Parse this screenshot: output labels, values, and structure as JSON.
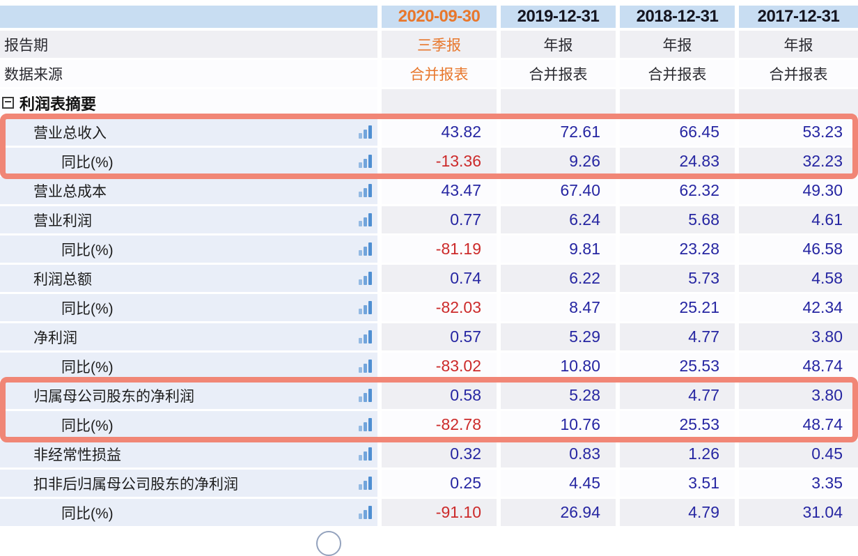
{
  "header": {
    "columns": [
      "2020-09-30",
      "2019-12-31",
      "2018-12-31",
      "2017-12-31"
    ],
    "accent_column": "2020-09-30"
  },
  "meta_rows": [
    {
      "label": "报告期",
      "values": [
        "三季报",
        "年报",
        "年报",
        "年报"
      ]
    },
    {
      "label": "数据来源",
      "values": [
        "合并报表",
        "合并报表",
        "合并报表",
        "合并报表"
      ]
    }
  ],
  "section": {
    "title": "利润表摘要",
    "collapse_icon": "minus-box-icon"
  },
  "rows": [
    {
      "label": "营业总收入",
      "indent": 1,
      "values": [
        "43.82",
        "72.61",
        "66.45",
        "53.23"
      ]
    },
    {
      "label": "同比(%)",
      "indent": 2,
      "values": [
        "-13.36",
        "9.26",
        "24.83",
        "32.23"
      ]
    },
    {
      "label": "营业总成本",
      "indent": 1,
      "values": [
        "43.47",
        "67.40",
        "62.32",
        "49.30"
      ]
    },
    {
      "label": "营业利润",
      "indent": 1,
      "values": [
        "0.77",
        "6.24",
        "5.68",
        "4.61"
      ]
    },
    {
      "label": "同比(%)",
      "indent": 2,
      "values": [
        "-81.19",
        "9.81",
        "23.28",
        "46.58"
      ]
    },
    {
      "label": "利润总额",
      "indent": 1,
      "values": [
        "0.74",
        "6.22",
        "5.73",
        "4.58"
      ]
    },
    {
      "label": "同比(%)",
      "indent": 2,
      "values": [
        "-82.03",
        "8.47",
        "25.21",
        "42.34"
      ]
    },
    {
      "label": "净利润",
      "indent": 1,
      "values": [
        "0.57",
        "5.29",
        "4.77",
        "3.80"
      ]
    },
    {
      "label": "同比(%)",
      "indent": 2,
      "values": [
        "-83.02",
        "10.80",
        "25.53",
        "48.74"
      ]
    },
    {
      "label": "归属母公司股东的净利润",
      "indent": 1,
      "values": [
        "0.58",
        "5.28",
        "4.77",
        "3.80"
      ]
    },
    {
      "label": "同比(%)",
      "indent": 2,
      "values": [
        "-82.78",
        "10.76",
        "25.53",
        "48.74"
      ]
    },
    {
      "label": "非经常性损益",
      "indent": 1,
      "values": [
        "0.32",
        "0.83",
        "1.26",
        "0.45"
      ]
    },
    {
      "label": "扣非后归属母公司股东的净利润",
      "indent": 1,
      "values": [
        "0.25",
        "4.45",
        "3.51",
        "3.35"
      ]
    },
    {
      "label": "同比(%)",
      "indent": 2,
      "values": [
        "-91.10",
        "26.94",
        "4.79",
        "31.04"
      ]
    }
  ],
  "highlights": [
    {
      "covers_rows": [
        "营业总收入",
        "同比(%)"
      ]
    },
    {
      "covers_rows": [
        "归属母公司股东的净利润",
        "同比(%)"
      ]
    }
  ],
  "colors": {
    "header_bg": "#c8ddf2",
    "accent_orange": "#e8772c",
    "value_navy": "#2626a2",
    "negative_red": "#cc2a2a",
    "highlight_border": "#f0806f",
    "bar_icon_blue": "#4f8fd2",
    "row_gray": "#efeff3",
    "row_white": "#fcfcfe",
    "label_col_blue": "#e9eef8"
  }
}
